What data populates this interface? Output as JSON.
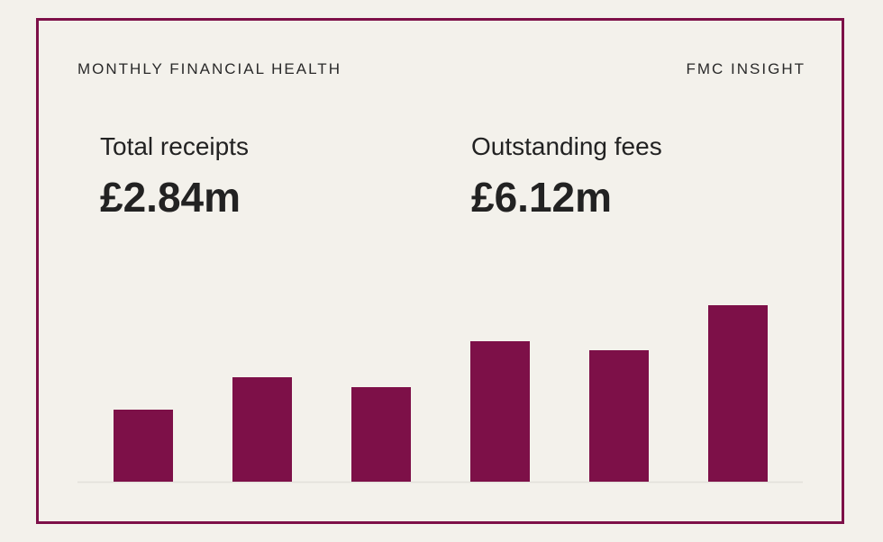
{
  "header": {
    "title": "MONTHLY FINANCIAL HEALTH",
    "brand": "FMC INSIGHT"
  },
  "kpis": [
    {
      "label": "Total receipts",
      "value": "£2.84m"
    },
    {
      "label": "Outstanding fees",
      "value": "£6.12m"
    }
  ],
  "colors": {
    "accent": "#7d1048",
    "background": "#f3f1eb",
    "baseline": "#e2e0da"
  },
  "chart_data": {
    "type": "bar",
    "categories": [
      "",
      "",
      "",
      "",
      "",
      ""
    ],
    "values": [
      40,
      58,
      52.5,
      78,
      73,
      98
    ],
    "ylim": [
      0,
      100
    ],
    "title": "",
    "xlabel": "",
    "ylabel": "",
    "grid": false,
    "legend": "none"
  }
}
